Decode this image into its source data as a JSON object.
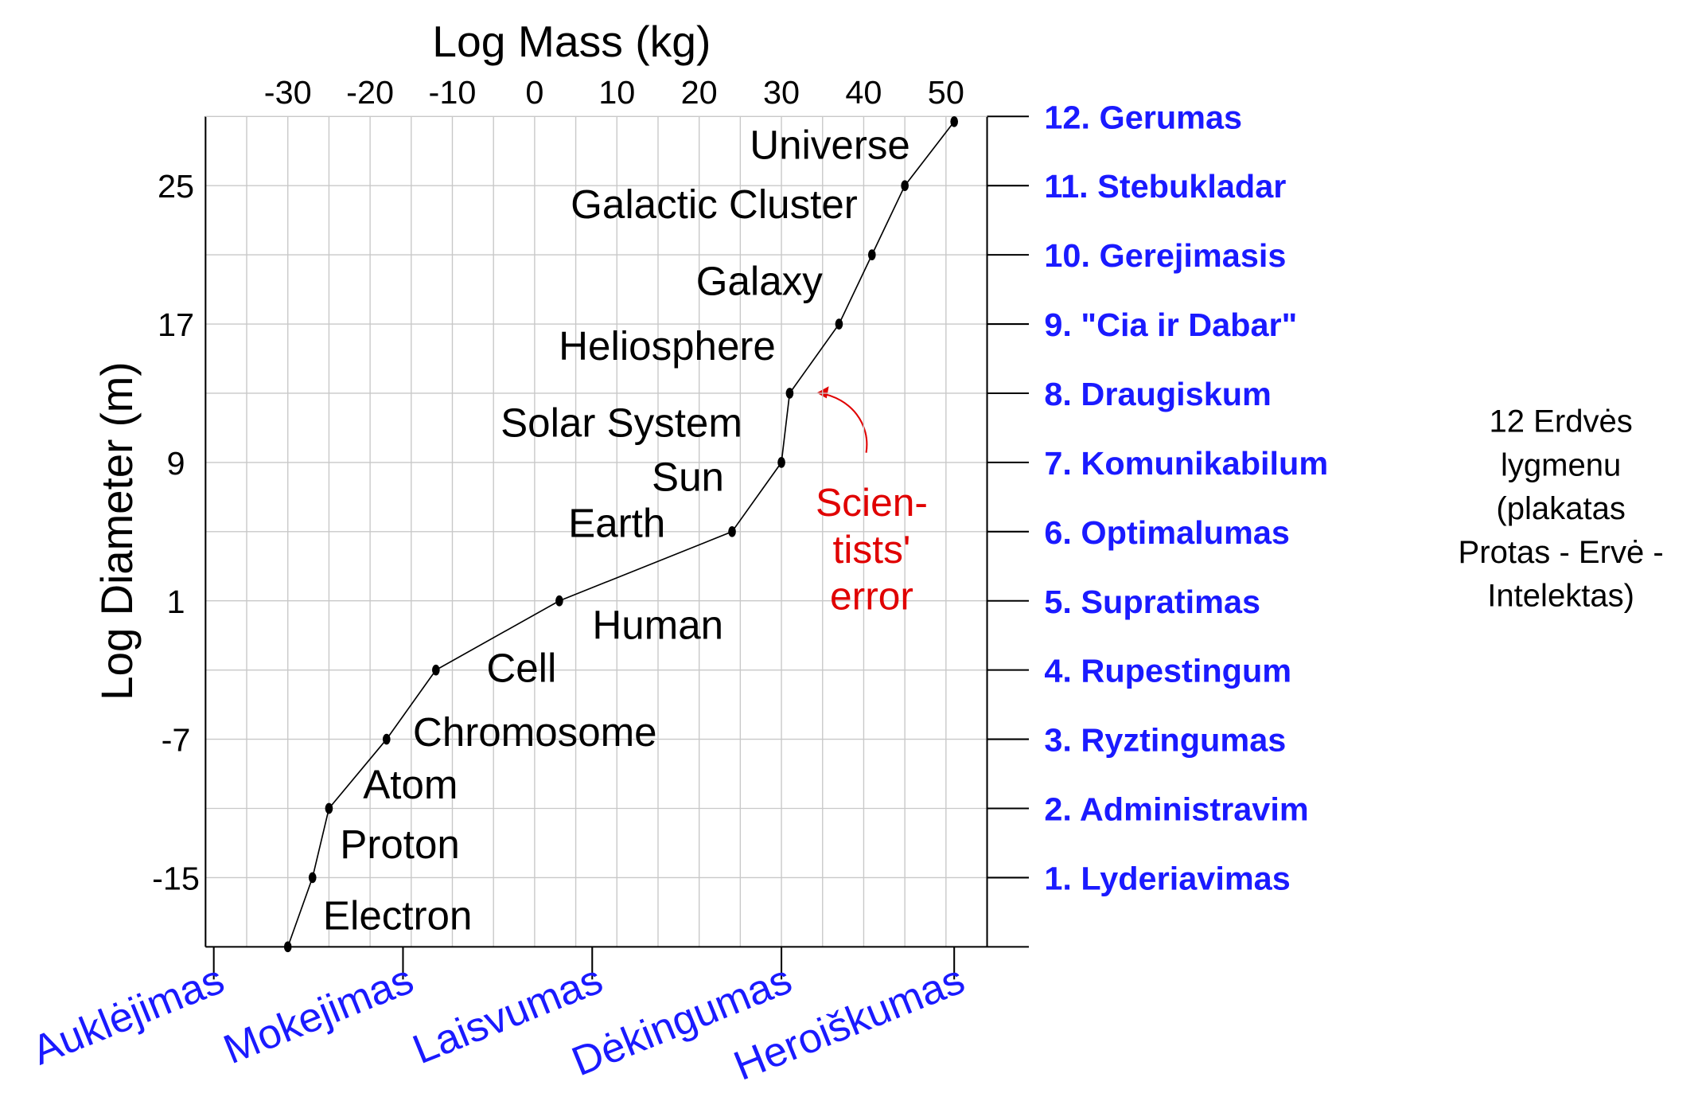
{
  "chart_data": {
    "type": "line",
    "title": "Log Mass (kg)",
    "y_label": "Log Diameter (m)",
    "x": [
      -30,
      -27,
      -25,
      -18,
      -12,
      3,
      24,
      30,
      31,
      37,
      41,
      45,
      51
    ],
    "values": [
      -19,
      -15,
      -11,
      -7,
      -3,
      1,
      5,
      9,
      13,
      17,
      21,
      25,
      28.7
    ],
    "point_labels": [
      "Electron",
      "Proton",
      "Atom",
      "Chromosome",
      "Cell",
      "Human",
      "Earth",
      "Sun",
      "Solar System",
      "Heliosphere",
      "Galaxy",
      "Galactic Cluster",
      "Universe"
    ],
    "color": "#000000",
    "xlim": [
      -40,
      55
    ],
    "ylim": [
      -19,
      29
    ],
    "xticks": [
      -30,
      -20,
      -10,
      0,
      10,
      20,
      30,
      40,
      50
    ],
    "yticks": [
      25,
      17,
      9,
      1,
      -7,
      -15
    ],
    "grid": true,
    "grid_x": [
      -35,
      -30,
      -25,
      -20,
      -15,
      -10,
      -5,
      0,
      5,
      10,
      15,
      20,
      25,
      30,
      35,
      40,
      45,
      50
    ],
    "grid_y": [
      -15,
      -11,
      -7,
      -3,
      1,
      5,
      9,
      13,
      17,
      21,
      25
    ],
    "y2lim": [
      -19,
      29
    ],
    "y2ticks": [
      {
        "value": 29,
        "label": "12. Gerumas"
      },
      {
        "value": 25,
        "label": "11. Stebukladar"
      },
      {
        "value": 21,
        "label": "10. Gerejimasis"
      },
      {
        "value": 17,
        "label": "9. \"Cia ir Dabar\""
      },
      {
        "value": 13,
        "label": "8. Draugiskum"
      },
      {
        "value": 9,
        "label": "7. Komunikabilum"
      },
      {
        "value": 5,
        "label": "6. Optimalumas"
      },
      {
        "value": 1,
        "label": "5. Supratimas"
      },
      {
        "value": -3,
        "label": "4. Rupestingum"
      },
      {
        "value": -7,
        "label": "3. Ryztingumas"
      },
      {
        "value": -11,
        "label": "2. Administravim"
      },
      {
        "value": -15,
        "label": "1. Lyderiavimas"
      },
      {
        "value": -19,
        "label": null
      }
    ],
    "x2ticks": [
      {
        "value": -39,
        "label": "Auklėjimas"
      },
      {
        "value": -16,
        "label": "Mokejimas"
      },
      {
        "value": 7,
        "label": "Laisvumas"
      },
      {
        "value": 30,
        "label": "Dėkingumas"
      },
      {
        "value": 51,
        "label": "Heroiškumas"
      }
    ],
    "annotation": [
      "Scien-",
      "tists'",
      "error"
    ],
    "note": [
      "12 Erdvės",
      "lygmenu",
      "(plakatas",
      "Protas - Ervė -",
      "Intelektas)"
    ]
  }
}
